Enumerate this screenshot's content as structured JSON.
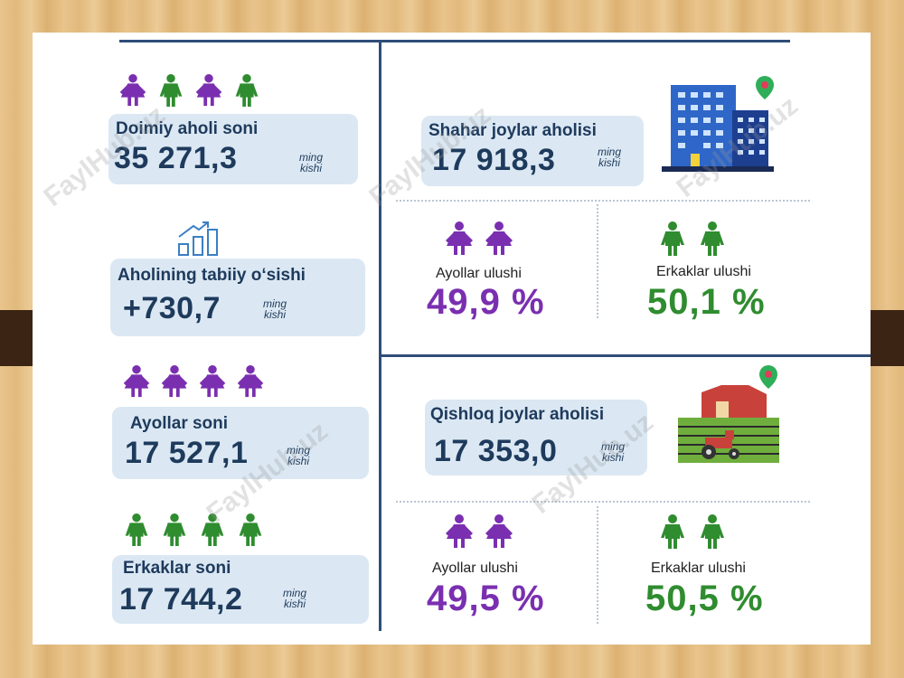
{
  "colors": {
    "female": "#7a2fb0",
    "male": "#2f8c2f",
    "text_dark": "#1e3a5c",
    "card_bg": "#dbe8f3"
  },
  "watermark": "FaylHub.uz",
  "left": {
    "permanent_population": {
      "title": "Doimiy aholi soni",
      "value": "35 271,3",
      "unit_line1": "ming",
      "unit_line2": "kishi",
      "icons": [
        "female-icon",
        "male-icon",
        "female-icon",
        "male-icon"
      ]
    },
    "natural_growth": {
      "title": "Aholining tabiiy o‘sishi",
      "value": "+730,7",
      "unit_line1": "ming",
      "unit_line2": "kishi",
      "icon": "growth-chart-icon"
    },
    "women_count": {
      "title": "Ayollar soni",
      "value": "17 527,1",
      "unit_line1": "ming",
      "unit_line2": "kishi",
      "icons": [
        "female-icon",
        "female-icon",
        "female-icon",
        "female-icon"
      ]
    },
    "men_count": {
      "title": "Erkaklar soni",
      "value": "17 744,2",
      "unit_line1": "ming",
      "unit_line2": "kishi",
      "icons": [
        "male-icon",
        "male-icon",
        "male-icon",
        "male-icon"
      ]
    }
  },
  "urban": {
    "title": "Shahar joylar aholisi",
    "value": "17 918,3",
    "unit_line1": "ming",
    "unit_line2": "kishi",
    "icon": "city-buildings-icon",
    "women_share": {
      "label": "Ayollar ulushi",
      "value": "49,9 %"
    },
    "men_share": {
      "label": "Erkaklar ulushi",
      "value": "50,1 %"
    }
  },
  "rural": {
    "title": "Qishloq joylar aholisi",
    "value": "17 353,0",
    "unit_line1": "ming",
    "unit_line2": "kishi",
    "icon": "farm-barn-icon",
    "women_share": {
      "label": "Ayollar ulushi",
      "value": "49,5 %"
    },
    "men_share": {
      "label": "Erkaklar ulushi",
      "value": "50,5 %"
    }
  }
}
